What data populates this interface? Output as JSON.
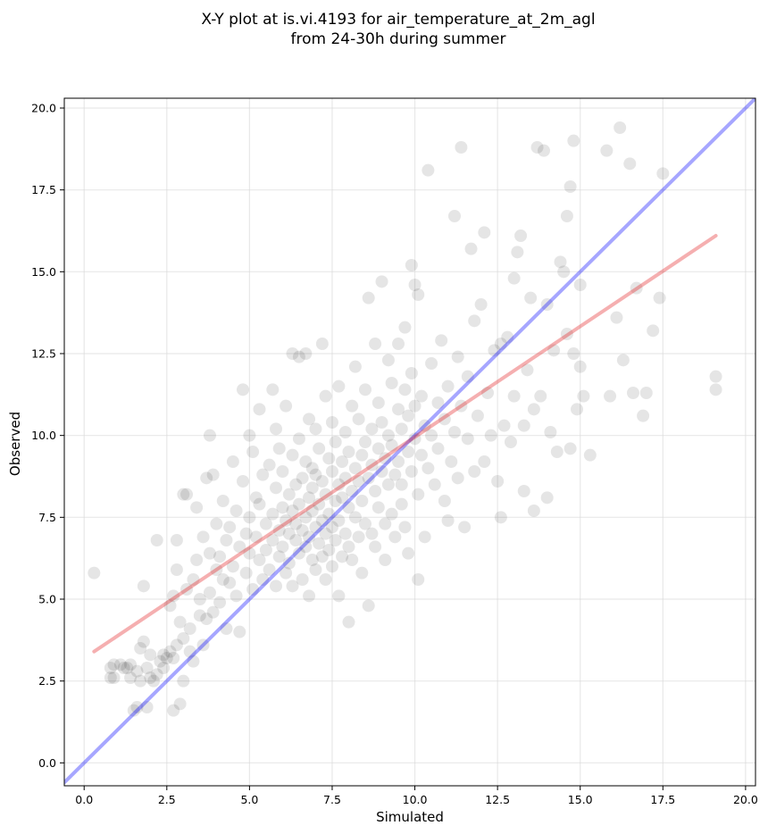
{
  "chart_data": {
    "type": "scatter",
    "title": "X-Y plot at is.vi.4193 for air_temperature_at_2m_agl",
    "subtitle": "from 24-30h during summer",
    "xlabel": "Simulated",
    "ylabel": "Observed",
    "xlim": [
      -0.6,
      20.3
    ],
    "ylim": [
      -0.7,
      20.3
    ],
    "xticks": [
      0.0,
      2.5,
      5.0,
      7.5,
      10.0,
      12.5,
      15.0,
      17.5,
      20.0
    ],
    "yticks": [
      0.0,
      2.5,
      5.0,
      7.5,
      10.0,
      12.5,
      15.0,
      17.5,
      20.0
    ],
    "grid": true,
    "legend": "none",
    "colors": {
      "points": "#000000",
      "one_to_one_line": "#0000ff",
      "regression_line": "#e31a1c",
      "grid": "#d9d9d9"
    },
    "reference_line": {
      "x": [
        -0.6,
        20.3
      ],
      "y": [
        -0.6,
        20.3
      ]
    },
    "regression_line": {
      "x": [
        0.3,
        19.1
      ],
      "y": [
        3.4,
        16.1
      ]
    },
    "points": [
      [
        0.3,
        5.8
      ],
      [
        0.8,
        2.9
      ],
      [
        0.8,
        2.6
      ],
      [
        0.9,
        2.6
      ],
      [
        0.9,
        3.0
      ],
      [
        1.1,
        3.0
      ],
      [
        1.2,
        2.9
      ],
      [
        1.3,
        2.9
      ],
      [
        1.4,
        2.6
      ],
      [
        1.4,
        3.0
      ],
      [
        1.5,
        1.6
      ],
      [
        1.6,
        2.8
      ],
      [
        1.6,
        1.7
      ],
      [
        1.7,
        2.5
      ],
      [
        1.7,
        3.5
      ],
      [
        1.8,
        3.7
      ],
      [
        1.8,
        5.4
      ],
      [
        1.9,
        2.9
      ],
      [
        1.9,
        1.7
      ],
      [
        2.0,
        2.6
      ],
      [
        2.0,
        3.3
      ],
      [
        2.1,
        2.5
      ],
      [
        2.2,
        2.7
      ],
      [
        2.2,
        6.8
      ],
      [
        2.3,
        3.1
      ],
      [
        2.4,
        3.3
      ],
      [
        2.4,
        2.9
      ],
      [
        2.5,
        3.2
      ],
      [
        2.6,
        3.4
      ],
      [
        2.6,
        4.8
      ],
      [
        2.7,
        3.2
      ],
      [
        2.7,
        5.1
      ],
      [
        2.7,
        1.6
      ],
      [
        2.8,
        6.8
      ],
      [
        2.8,
        3.6
      ],
      [
        2.8,
        5.9
      ],
      [
        2.9,
        1.8
      ],
      [
        2.9,
        4.3
      ],
      [
        3.0,
        3.8
      ],
      [
        3.0,
        2.5
      ],
      [
        3.0,
        8.2
      ],
      [
        3.1,
        5.3
      ],
      [
        3.1,
        8.2
      ],
      [
        3.2,
        3.4
      ],
      [
        3.2,
        4.1
      ],
      [
        3.3,
        3.1
      ],
      [
        3.3,
        5.6
      ],
      [
        3.4,
        6.2
      ],
      [
        3.4,
        7.8
      ],
      [
        3.5,
        4.5
      ],
      [
        3.5,
        5.0
      ],
      [
        3.6,
        6.9
      ],
      [
        3.6,
        3.6
      ],
      [
        3.7,
        4.4
      ],
      [
        3.7,
        8.7
      ],
      [
        3.8,
        10.0
      ],
      [
        3.8,
        5.2
      ],
      [
        3.8,
        6.4
      ],
      [
        3.9,
        8.8
      ],
      [
        3.9,
        4.6
      ],
      [
        4.0,
        5.9
      ],
      [
        4.0,
        7.3
      ],
      [
        4.1,
        4.9
      ],
      [
        4.1,
        6.3
      ],
      [
        4.2,
        8.0
      ],
      [
        4.2,
        5.6
      ],
      [
        4.3,
        6.8
      ],
      [
        4.3,
        4.1
      ],
      [
        4.4,
        7.2
      ],
      [
        4.4,
        5.5
      ],
      [
        4.5,
        9.2
      ],
      [
        4.5,
        6.0
      ],
      [
        4.6,
        7.7
      ],
      [
        4.6,
        5.1
      ],
      [
        4.7,
        4.0
      ],
      [
        4.7,
        6.6
      ],
      [
        4.8,
        11.4
      ],
      [
        4.8,
        8.6
      ],
      [
        4.9,
        7.0
      ],
      [
        4.9,
        5.8
      ],
      [
        5.0,
        10.0
      ],
      [
        5.0,
        6.4
      ],
      [
        5.0,
        7.5
      ],
      [
        5.1,
        9.5
      ],
      [
        5.1,
        5.3
      ],
      [
        5.2,
        8.1
      ],
      [
        5.2,
        6.9
      ],
      [
        5.3,
        10.8
      ],
      [
        5.3,
        6.2
      ],
      [
        5.3,
        7.9
      ],
      [
        5.4,
        5.6
      ],
      [
        5.4,
        8.8
      ],
      [
        5.5,
        7.3
      ],
      [
        5.5,
        6.5
      ],
      [
        5.6,
        9.1
      ],
      [
        5.6,
        5.9
      ],
      [
        5.7,
        11.4
      ],
      [
        5.7,
        7.6
      ],
      [
        5.7,
        6.8
      ],
      [
        5.8,
        8.4
      ],
      [
        5.8,
        5.4
      ],
      [
        5.8,
        10.2
      ],
      [
        5.9,
        7.1
      ],
      [
        5.9,
        6.3
      ],
      [
        5.9,
        9.6
      ],
      [
        6.0,
        7.8
      ],
      [
        6.0,
        6.6
      ],
      [
        6.0,
        8.9
      ],
      [
        6.1,
        7.4
      ],
      [
        6.1,
        5.8
      ],
      [
        6.1,
        10.9
      ],
      [
        6.2,
        7.0
      ],
      [
        6.2,
        8.2
      ],
      [
        6.2,
        6.1
      ],
      [
        6.3,
        12.5
      ],
      [
        6.3,
        7.7
      ],
      [
        6.3,
        9.4
      ],
      [
        6.3,
        5.4
      ],
      [
        6.4,
        6.8
      ],
      [
        6.4,
        8.5
      ],
      [
        6.4,
        7.3
      ],
      [
        6.5,
        12.4
      ],
      [
        6.5,
        6.4
      ],
      [
        6.5,
        9.9
      ],
      [
        6.5,
        7.9
      ],
      [
        6.6,
        5.6
      ],
      [
        6.6,
        8.7
      ],
      [
        6.6,
        7.1
      ],
      [
        6.7,
        12.5
      ],
      [
        6.7,
        6.6
      ],
      [
        6.7,
        9.2
      ],
      [
        6.7,
        7.5
      ],
      [
        6.8,
        8.1
      ],
      [
        6.8,
        5.1
      ],
      [
        6.8,
        10.5
      ],
      [
        6.8,
        6.9
      ],
      [
        6.9,
        7.7
      ],
      [
        6.9,
        9.0
      ],
      [
        6.9,
        6.2
      ],
      [
        6.9,
        8.4
      ],
      [
        7.0,
        7.2
      ],
      [
        7.0,
        5.9
      ],
      [
        7.0,
        10.2
      ],
      [
        7.0,
        8.8
      ],
      [
        7.1,
        6.7
      ],
      [
        7.1,
        7.9
      ],
      [
        7.1,
        9.6
      ],
      [
        7.2,
        7.4
      ],
      [
        7.2,
        12.8
      ],
      [
        7.2,
        6.3
      ],
      [
        7.2,
        8.6
      ],
      [
        7.3,
        7.0
      ],
      [
        7.3,
        11.2
      ],
      [
        7.3,
        8.2
      ],
      [
        7.3,
        5.6
      ],
      [
        7.4,
        9.3
      ],
      [
        7.4,
        7.6
      ],
      [
        7.4,
        6.5
      ],
      [
        7.5,
        8.9
      ],
      [
        7.5,
        7.2
      ],
      [
        7.5,
        10.4
      ],
      [
        7.5,
        6.0
      ],
      [
        7.6,
        8.0
      ],
      [
        7.6,
        9.8
      ],
      [
        7.6,
        6.8
      ],
      [
        7.7,
        5.1
      ],
      [
        7.7,
        8.5
      ],
      [
        7.7,
        7.4
      ],
      [
        7.7,
        11.5
      ],
      [
        7.8,
        9.2
      ],
      [
        7.8,
        6.3
      ],
      [
        7.8,
        8.1
      ],
      [
        7.9,
        7.0
      ],
      [
        7.9,
        10.1
      ],
      [
        7.9,
        8.7
      ],
      [
        8.0,
        6.6
      ],
      [
        8.0,
        9.5
      ],
      [
        8.0,
        4.3
      ],
      [
        8.0,
        7.8
      ],
      [
        8.1,
        10.9
      ],
      [
        8.1,
        8.3
      ],
      [
        8.1,
        6.2
      ],
      [
        8.2,
        12.1
      ],
      [
        8.2,
        9.0
      ],
      [
        8.2,
        7.5
      ],
      [
        8.3,
        8.6
      ],
      [
        8.3,
        10.5
      ],
      [
        8.3,
        6.9
      ],
      [
        8.4,
        9.4
      ],
      [
        8.4,
        5.8
      ],
      [
        8.4,
        8.0
      ],
      [
        8.5,
        11.4
      ],
      [
        8.5,
        7.3
      ],
      [
        8.5,
        9.8
      ],
      [
        8.6,
        4.8
      ],
      [
        8.6,
        8.7
      ],
      [
        8.6,
        14.2
      ],
      [
        8.7,
        10.2
      ],
      [
        8.7,
        7.0
      ],
      [
        8.7,
        9.1
      ],
      [
        8.8,
        12.8
      ],
      [
        8.8,
        8.3
      ],
      [
        8.8,
        6.6
      ],
      [
        8.9,
        9.6
      ],
      [
        8.9,
        11.0
      ],
      [
        8.9,
        7.8
      ],
      [
        9.0,
        14.7
      ],
      [
        9.0,
        8.9
      ],
      [
        9.0,
        10.4
      ],
      [
        9.1,
        7.3
      ],
      [
        9.1,
        9.3
      ],
      [
        9.1,
        6.2
      ],
      [
        9.2,
        12.3
      ],
      [
        9.2,
        8.5
      ],
      [
        9.2,
        10.0
      ],
      [
        9.3,
        9.7
      ],
      [
        9.3,
        7.6
      ],
      [
        9.3,
        11.6
      ],
      [
        9.4,
        8.8
      ],
      [
        9.4,
        6.9
      ],
      [
        9.5,
        10.8
      ],
      [
        9.5,
        9.2
      ],
      [
        9.5,
        12.8
      ],
      [
        9.6,
        7.9
      ],
      [
        9.6,
        10.2
      ],
      [
        9.6,
        8.5
      ],
      [
        9.7,
        11.4
      ],
      [
        9.7,
        7.2
      ],
      [
        9.7,
        13.3
      ],
      [
        9.8,
        9.5
      ],
      [
        9.8,
        10.6
      ],
      [
        9.8,
        6.4
      ],
      [
        9.9,
        15.2
      ],
      [
        9.9,
        8.9
      ],
      [
        9.9,
        11.9
      ],
      [
        10.0,
        9.9
      ],
      [
        10.0,
        14.6
      ],
      [
        10.0,
        10.9
      ],
      [
        10.1,
        14.3
      ],
      [
        10.1,
        8.2
      ],
      [
        10.1,
        5.6
      ],
      [
        10.2,
        9.4
      ],
      [
        10.2,
        11.2
      ],
      [
        10.3,
        10.3
      ],
      [
        10.3,
        6.9
      ],
      [
        10.4,
        18.1
      ],
      [
        10.4,
        9.0
      ],
      [
        10.5,
        12.2
      ],
      [
        10.5,
        10.0
      ],
      [
        10.6,
        8.5
      ],
      [
        10.7,
        11.0
      ],
      [
        10.7,
        9.6
      ],
      [
        10.8,
        12.9
      ],
      [
        10.9,
        8.0
      ],
      [
        10.9,
        10.5
      ],
      [
        11.0,
        7.4
      ],
      [
        11.0,
        11.5
      ],
      [
        11.1,
        9.2
      ],
      [
        11.2,
        16.7
      ],
      [
        11.2,
        10.1
      ],
      [
        11.3,
        12.4
      ],
      [
        11.3,
        8.7
      ],
      [
        11.4,
        18.8
      ],
      [
        11.4,
        10.9
      ],
      [
        11.5,
        7.2
      ],
      [
        11.6,
        9.9
      ],
      [
        11.6,
        11.8
      ],
      [
        11.7,
        15.7
      ],
      [
        11.8,
        8.9
      ],
      [
        11.8,
        13.5
      ],
      [
        11.9,
        10.6
      ],
      [
        12.0,
        14.0
      ],
      [
        12.1,
        9.2
      ],
      [
        12.1,
        16.2
      ],
      [
        12.2,
        11.3
      ],
      [
        12.3,
        10.0
      ],
      [
        12.4,
        12.6
      ],
      [
        12.5,
        8.6
      ],
      [
        12.6,
        12.8
      ],
      [
        12.6,
        7.5
      ],
      [
        12.7,
        10.3
      ],
      [
        12.8,
        13.0
      ],
      [
        12.9,
        9.8
      ],
      [
        13.0,
        11.2
      ],
      [
        13.0,
        14.8
      ],
      [
        13.1,
        15.6
      ],
      [
        13.2,
        16.1
      ],
      [
        13.3,
        10.3
      ],
      [
        13.3,
        8.3
      ],
      [
        13.4,
        12.0
      ],
      [
        13.5,
        14.2
      ],
      [
        13.6,
        10.8
      ],
      [
        13.6,
        7.7
      ],
      [
        13.7,
        18.8
      ],
      [
        13.8,
        11.2
      ],
      [
        13.9,
        18.7
      ],
      [
        14.0,
        14.0
      ],
      [
        14.0,
        8.1
      ],
      [
        14.1,
        10.1
      ],
      [
        14.2,
        12.6
      ],
      [
        14.3,
        9.5
      ],
      [
        14.4,
        15.3
      ],
      [
        14.5,
        15.0
      ],
      [
        14.6,
        16.7
      ],
      [
        14.6,
        13.1
      ],
      [
        14.7,
        17.6
      ],
      [
        14.7,
        9.6
      ],
      [
        14.8,
        19.0
      ],
      [
        14.8,
        12.5
      ],
      [
        14.9,
        10.8
      ],
      [
        15.0,
        14.6
      ],
      [
        15.0,
        12.1
      ],
      [
        15.1,
        11.2
      ],
      [
        15.3,
        9.4
      ],
      [
        15.8,
        18.7
      ],
      [
        15.9,
        11.2
      ],
      [
        16.1,
        13.6
      ],
      [
        16.2,
        19.4
      ],
      [
        16.3,
        12.3
      ],
      [
        16.5,
        18.3
      ],
      [
        16.6,
        11.3
      ],
      [
        16.7,
        14.5
      ],
      [
        16.9,
        10.6
      ],
      [
        17.0,
        11.3
      ],
      [
        17.2,
        13.2
      ],
      [
        17.4,
        14.2
      ],
      [
        17.5,
        18.0
      ],
      [
        19.1,
        11.8
      ],
      [
        19.1,
        11.4
      ]
    ]
  }
}
